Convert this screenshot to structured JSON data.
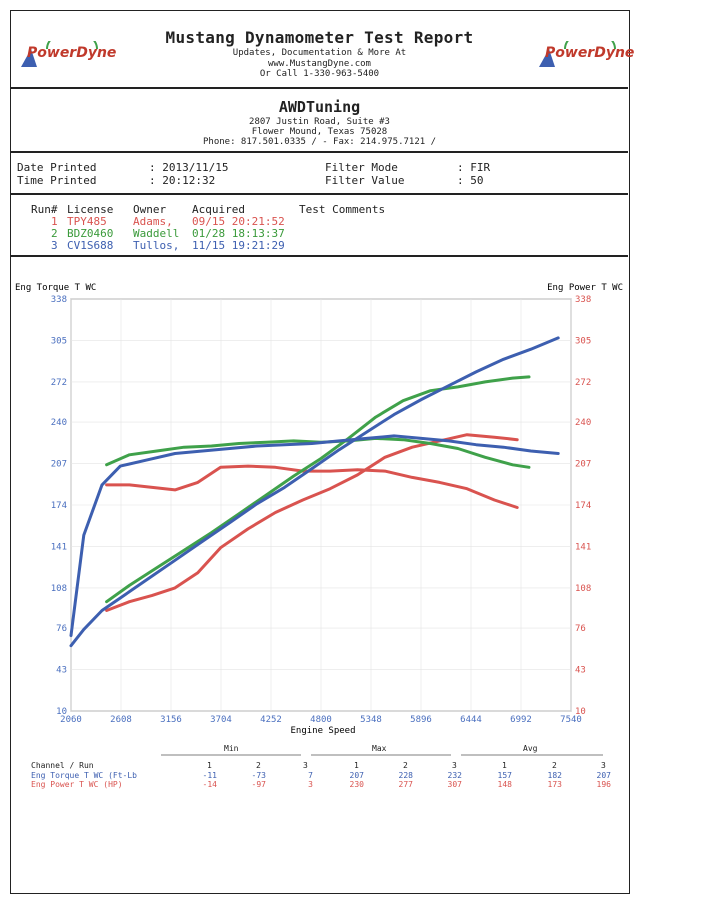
{
  "header": {
    "title": "Mustang Dynamometer Test Report",
    "line1": "Updates, Documentation & More At",
    "line2": "www.MustangDyne.com",
    "line3": "Or Call 1-330-963-5400",
    "logo_text": "PowerDyne",
    "logo_icon": "powerdyne-logo-icon"
  },
  "shop": {
    "name": "AWDTuning",
    "address1": "2807 Justin Road, Suite #3",
    "address2": "Flower Mound, Texas  75028",
    "phone": "Phone: 817.501.0335 /  - Fax: 214.975.7121 /"
  },
  "info": {
    "date_label": "Date Printed",
    "date_value": ": 2013/11/15",
    "time_label": "Time Printed",
    "time_value": ": 20:12:32",
    "filter_mode_label": "Filter Mode",
    "filter_mode_value": ": FIR",
    "filter_value_label": "Filter Value",
    "filter_value_value": ": 50"
  },
  "runs": {
    "headers": [
      "Run#",
      "License",
      "Owner",
      "Acquired",
      "Test Comments"
    ],
    "rows": [
      {
        "num": "1",
        "license": "TPY485",
        "owner": "Adams,",
        "acquired": "09/15 20:21:52",
        "color": "#d9534f"
      },
      {
        "num": "2",
        "license": "BDZ0460",
        "owner": "Waddell",
        "acquired": "01/28 18:13:37",
        "color": "#3a9a3a"
      },
      {
        "num": "3",
        "license": "CV1S688",
        "owner": "Tullos,",
        "acquired": "11/15 19:21:29",
        "color": "#3d5fb0"
      }
    ]
  },
  "colors": {
    "torque_axis": "#4a6fbf",
    "power_axis": "#d9534f",
    "run1": "#d9534f",
    "run2": "#3fa14a",
    "run3": "#3d5fb0"
  },
  "chart_data": {
    "type": "line",
    "left_axis_label": "Eng Torque T WC",
    "right_axis_label": "Eng Power T WC",
    "xlabel": "Engine Speed",
    "x_ticks": [
      2060,
      2608,
      3156,
      3704,
      4252,
      4800,
      5348,
      5896,
      6444,
      6992,
      7540
    ],
    "y_ticks": [
      10,
      43,
      76,
      108,
      141,
      174,
      207,
      240,
      272,
      305,
      338
    ],
    "xlim": [
      2060,
      7540
    ],
    "ylim": [
      10,
      338
    ],
    "series": [
      {
        "run": 1,
        "quantity": "torque",
        "color": "#d9534f",
        "x": [
          2450,
          2700,
          2950,
          3200,
          3450,
          3700,
          4000,
          4300,
          4600,
          4900,
          5200,
          5500,
          5800,
          6100,
          6400,
          6700,
          6950
        ],
        "y": [
          190,
          190,
          188,
          186,
          192,
          204,
          205,
          204,
          201,
          201,
          202,
          201,
          196,
          192,
          187,
          178,
          172
        ]
      },
      {
        "run": 1,
        "quantity": "power",
        "color": "#d9534f",
        "x": [
          2450,
          2700,
          2950,
          3200,
          3450,
          3700,
          4000,
          4300,
          4600,
          4900,
          5200,
          5500,
          5800,
          6100,
          6400,
          6700,
          6950
        ],
        "y": [
          90,
          97,
          102,
          108,
          120,
          140,
          155,
          168,
          178,
          187,
          198,
          212,
          220,
          225,
          230,
          228,
          226
        ]
      },
      {
        "run": 2,
        "quantity": "torque",
        "color": "#3fa14a",
        "x": [
          2450,
          2700,
          3000,
          3300,
          3600,
          3900,
          4200,
          4500,
          4800,
          5100,
          5400,
          5700,
          6000,
          6300,
          6600,
          6900,
          7080
        ],
        "y": [
          206,
          214,
          217,
          220,
          221,
          223,
          224,
          225,
          224,
          225,
          227,
          226,
          223,
          219,
          212,
          206,
          204
        ]
      },
      {
        "run": 2,
        "quantity": "power",
        "color": "#3fa14a",
        "x": [
          2450,
          2700,
          3000,
          3300,
          3600,
          3900,
          4200,
          4500,
          4800,
          5100,
          5400,
          5700,
          6000,
          6300,
          6600,
          6900,
          7080
        ],
        "y": [
          97,
          110,
          124,
          138,
          152,
          167,
          182,
          197,
          211,
          227,
          244,
          257,
          265,
          268,
          272,
          275,
          276
        ]
      },
      {
        "run": 3,
        "quantity": "torque",
        "color": "#3d5fb0",
        "x": [
          2060,
          2200,
          2400,
          2600,
          2900,
          3200,
          3500,
          3800,
          4100,
          4400,
          4700,
          5000,
          5300,
          5600,
          5900,
          6200,
          6500,
          6800,
          7100,
          7400
        ],
        "y": [
          70,
          150,
          190,
          205,
          210,
          215,
          217,
          219,
          221,
          222,
          223,
          225,
          227,
          229,
          227,
          225,
          222,
          220,
          217,
          215
        ]
      },
      {
        "run": 3,
        "quantity": "power",
        "color": "#3d5fb0",
        "x": [
          2060,
          2200,
          2400,
          2600,
          2900,
          3200,
          3500,
          3800,
          4100,
          4400,
          4700,
          5000,
          5300,
          5600,
          5900,
          6200,
          6500,
          6800,
          7100,
          7400
        ],
        "y": [
          62,
          75,
          90,
          100,
          115,
          130,
          145,
          160,
          175,
          188,
          203,
          218,
          232,
          246,
          258,
          269,
          280,
          290,
          298,
          307
        ]
      }
    ]
  },
  "table": {
    "group_min": "Min",
    "group_max": "Max",
    "group_avg": "Avg",
    "row_header": "Channel / Run",
    "run_cols": [
      "1",
      "2",
      "3",
      "1",
      "2",
      "3",
      "1",
      "2",
      "3"
    ],
    "rows": [
      {
        "label": "Eng Torque T WC (Ft-Lb",
        "values": [
          "-11",
          "-73",
          "7",
          "207",
          "228",
          "232",
          "157",
          "182",
          "207"
        ],
        "color": "#3d5fb0"
      },
      {
        "label": "Eng Power T WC (HP)",
        "values": [
          "-14",
          "-97",
          "3",
          "230",
          "277",
          "307",
          "148",
          "173",
          "196"
        ],
        "color": "#d9534f"
      }
    ]
  }
}
